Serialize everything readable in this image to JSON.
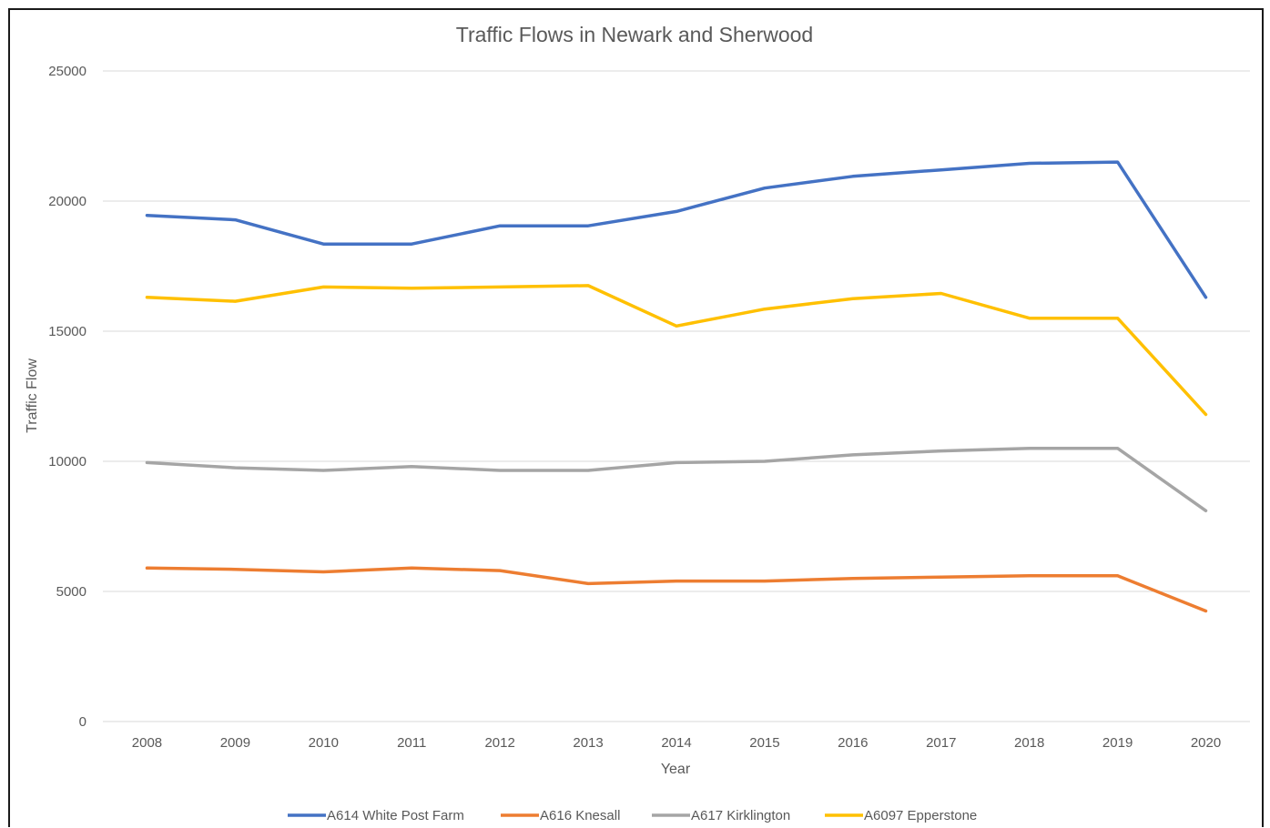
{
  "chart_data": {
    "type": "line",
    "title": "Traffic Flows in Newark and Sherwood",
    "xlabel": "Year",
    "ylabel": "Traffic Flow",
    "ylim": [
      0,
      25000
    ],
    "yticks": [
      "0",
      "5000",
      "10000",
      "15000",
      "20000",
      "25000"
    ],
    "categories": [
      "2008",
      "2009",
      "2010",
      "2011",
      "2012",
      "2013",
      "2014",
      "2015",
      "2016",
      "2017",
      "2018",
      "2019",
      "2020"
    ],
    "grid": true,
    "legend_position": "bottom",
    "series": [
      {
        "name": "A614 White Post Farm",
        "color": "#4472c4",
        "values": [
          19450,
          19280,
          18350,
          18350,
          19050,
          19050,
          19600,
          20500,
          20950,
          21200,
          21450,
          21500,
          16300
        ]
      },
      {
        "name": "A616 Knesall",
        "color": "#ed7d31",
        "values": [
          5900,
          5850,
          5750,
          5900,
          5800,
          5300,
          5400,
          5400,
          5500,
          5550,
          5600,
          5600,
          4250
        ]
      },
      {
        "name": "A617 Kirklington",
        "color": "#a5a5a5",
        "values": [
          9950,
          9750,
          9650,
          9800,
          9650,
          9650,
          9950,
          10000,
          10250,
          10400,
          10500,
          10500,
          8100
        ]
      },
      {
        "name": "A6097 Epperstone",
        "color": "#ffc000",
        "values": [
          16300,
          16150,
          16700,
          16650,
          16700,
          16750,
          15200,
          15850,
          16250,
          16450,
          15500,
          15500,
          11800
        ]
      }
    ]
  }
}
